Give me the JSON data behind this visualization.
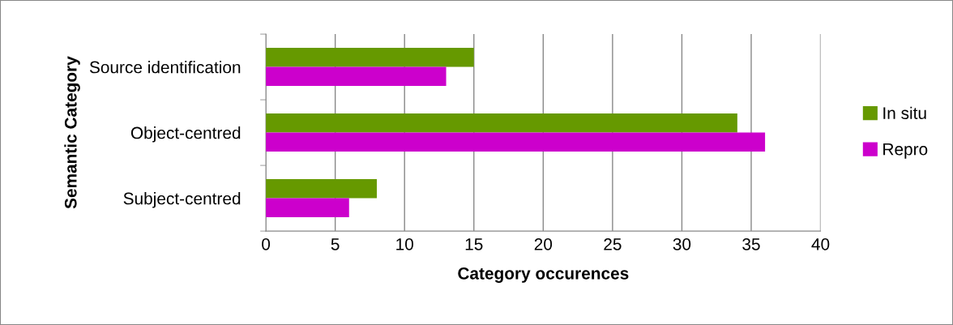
{
  "chart_data": {
    "type": "bar",
    "orientation": "horizontal",
    "xlabel": "Category occurences",
    "ylabel": "Semantic Category",
    "categories": [
      "Source identification",
      "Object-centred",
      "Subject-centred"
    ],
    "series": [
      {
        "name": "In situ",
        "color": "#669900",
        "values": [
          15,
          34,
          8
        ]
      },
      {
        "name": "Repro",
        "color": "#cc00cc",
        "values": [
          13,
          36,
          6
        ]
      }
    ],
    "xlim": [
      0,
      40
    ],
    "xticks": [
      0,
      5,
      10,
      15,
      20,
      25,
      30,
      35,
      40
    ],
    "grid": "x",
    "legend": "right"
  }
}
